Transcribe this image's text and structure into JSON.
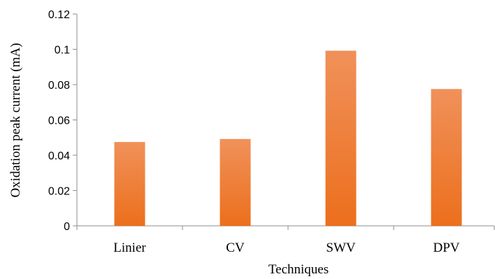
{
  "chart_data": {
    "type": "bar",
    "categories": [
      "Linier",
      "CV",
      "SWV",
      "DPV"
    ],
    "values": [
      0.0475,
      0.0492,
      0.0992,
      0.0775
    ],
    "xlabel": "Techniques",
    "ylabel": "Oxidation peak current (mA)",
    "ylim": [
      0,
      0.12
    ],
    "yticks": [
      0,
      0.02,
      0.04,
      0.06,
      0.08,
      0.1,
      0.12
    ],
    "ytick_labels": [
      "0",
      "0.02",
      "0.04",
      "0.06",
      "0.08",
      "0.1",
      "0.12"
    ],
    "grid": false,
    "legend": "none",
    "bar_color_top": "#f0915a",
    "bar_color_bottom": "#ec6f1c",
    "axis_color": "#8c8c8c"
  }
}
